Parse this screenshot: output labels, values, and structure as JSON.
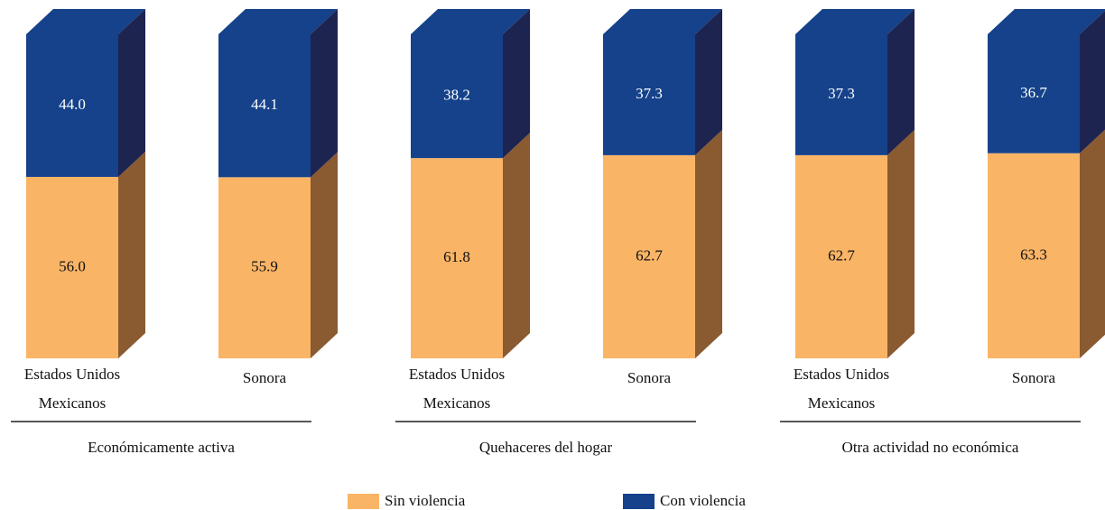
{
  "chart_data": {
    "type": "bar3d_stacked",
    "categories": [
      [
        "Estados Unidos",
        "Mexicanos"
      ],
      [
        "Sonora"
      ],
      [
        "Estados Unidos",
        "Mexicanos"
      ],
      [
        "Sonora"
      ],
      [
        "Estados Unidos",
        "Mexicanos"
      ],
      [
        "Sonora"
      ]
    ],
    "groups": [
      "Económicamente activa",
      "Quehaceres del hogar",
      "Otra actividad no económica"
    ],
    "series": [
      {
        "name": "Sin violencia",
        "color": "#f9b466",
        "side_color": "#8a5a30",
        "values": [
          56.0,
          55.9,
          61.8,
          62.7,
          62.7,
          63.3
        ],
        "value_labels": [
          "56.0",
          "55.9",
          "61.8",
          "62.7",
          "62.7",
          "63.3"
        ]
      },
      {
        "name": "Con violencia",
        "color": "#15428a",
        "side_color": "#1e2450",
        "values": [
          44.0,
          44.1,
          38.2,
          37.3,
          37.3,
          36.7
        ],
        "value_labels": [
          "44.0",
          "44.1",
          "38.2",
          "37.3",
          "37.3",
          "36.7"
        ]
      }
    ],
    "ylim": [
      0,
      100
    ]
  }
}
